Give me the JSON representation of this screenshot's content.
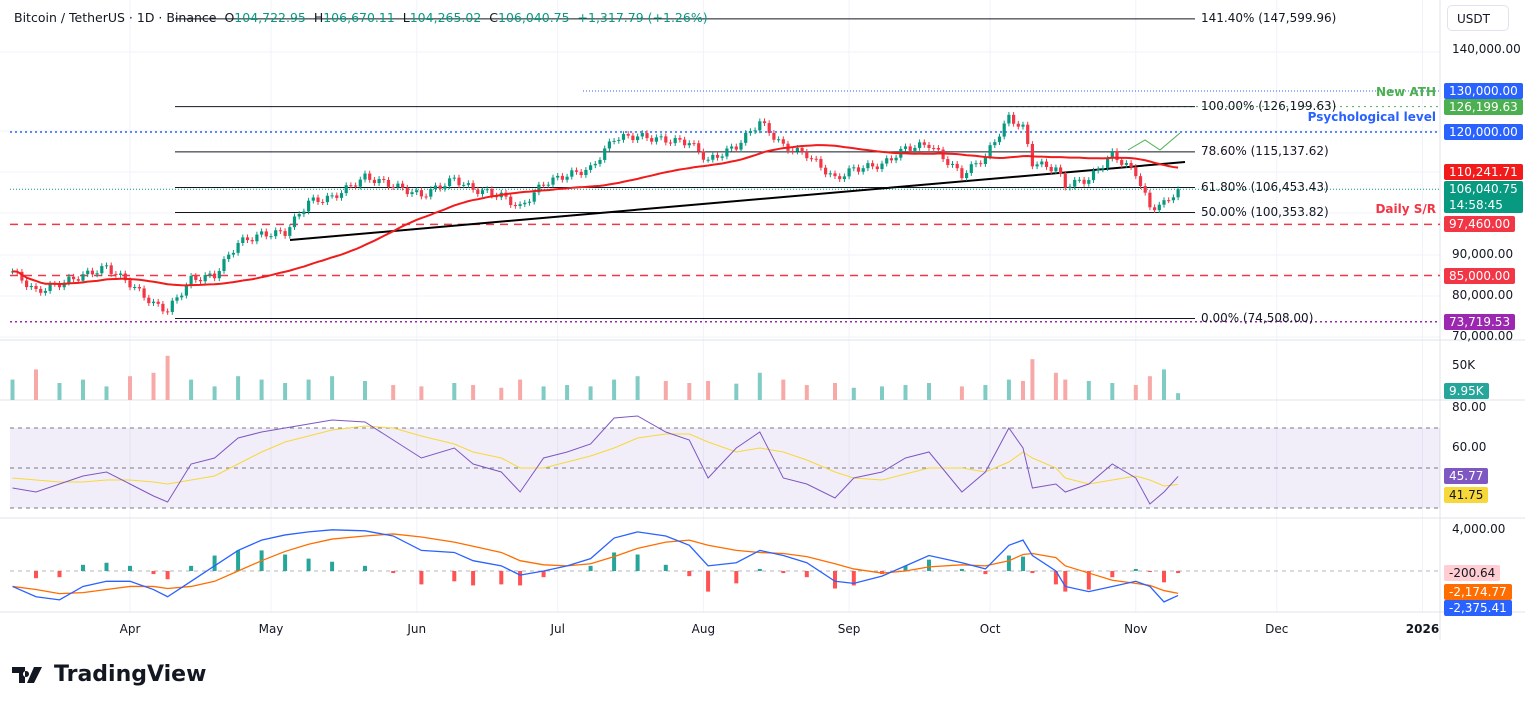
{
  "header": {
    "symbol": "Bitcoin / TetherUS · 1D · Binance",
    "o_label": "O",
    "o": "104,722.95",
    "h_label": "H",
    "h": "106,670.11",
    "l_label": "L",
    "l": "104,265.02",
    "c_label": "C",
    "c": "106,040.75",
    "change": "+1,317.79 (+1.26%)"
  },
  "currency": "USDT",
  "brand": "TradingView",
  "colors": {
    "up": "#089981",
    "down": "#f23645",
    "ma": "#f21b1b",
    "rsi": "#7e57c2",
    "rsi_ma": "#f7d83a",
    "macd": "#2962ff",
    "signal": "#ff6d00"
  },
  "chart_data": [
    {
      "type": "candlestick",
      "pane": "price",
      "x": [
        "2025-03-07",
        "2025-03-12",
        "2025-03-17",
        "2025-03-22",
        "2025-03-27",
        "2025-04-01",
        "2025-04-06",
        "2025-04-09",
        "2025-04-14",
        "2025-04-19",
        "2025-04-24",
        "2025-04-29",
        "2025-05-04",
        "2025-05-09",
        "2025-05-14",
        "2025-05-21",
        "2025-05-27",
        "2025-06-02",
        "2025-06-09",
        "2025-06-13",
        "2025-06-19",
        "2025-06-23",
        "2025-06-28",
        "2025-07-03",
        "2025-07-08",
        "2025-07-13",
        "2025-07-18",
        "2025-07-24",
        "2025-07-29",
        "2025-08-02",
        "2025-08-08",
        "2025-08-13",
        "2025-08-18",
        "2025-08-23",
        "2025-08-29",
        "2025-09-02",
        "2025-09-08",
        "2025-09-13",
        "2025-09-18",
        "2025-09-25",
        "2025-09-30",
        "2025-10-05",
        "2025-10-08",
        "2025-10-10",
        "2025-10-15",
        "2025-10-17",
        "2025-10-22",
        "2025-10-27",
        "2025-11-01",
        "2025-11-04",
        "2025-11-07",
        "2025-11-10"
      ],
      "close": [
        86000,
        81000,
        83000,
        85000,
        87000,
        83000,
        78000,
        76500,
        84000,
        85000,
        93000,
        95000,
        95500,
        103000,
        104000,
        109000,
        107000,
        104500,
        108500,
        106000,
        104500,
        101500,
        107500,
        109500,
        111000,
        118500,
        119000,
        118000,
        117500,
        113000,
        116500,
        122500,
        116500,
        114500,
        108500,
        111000,
        112000,
        116000,
        117000,
        109500,
        114000,
        123500,
        121000,
        112500,
        111000,
        107000,
        108500,
        114500,
        110000,
        101500,
        102500,
        106040.75
      ],
      "ma_label": "110,241.71",
      "ma_last": 110241.71,
      "y_ticks": [
        140000,
        90000,
        80000,
        70000
      ],
      "y_tick_labels": [
        "140,000.00",
        "90,000.00",
        "80,000.00",
        "70,000.00"
      ],
      "x_tick_labels": [
        "Apr",
        "May",
        "Jun",
        "Jul",
        "Aug",
        "Sep",
        "Oct",
        "Nov",
        "Dec",
        "2026"
      ],
      "x_tick_dates": [
        "2025-04-01",
        "2025-05-01",
        "2025-06-01",
        "2025-07-01",
        "2025-08-01",
        "2025-09-01",
        "2025-10-01",
        "2025-11-01",
        "2025-12-01",
        "2026-01-01"
      ],
      "fib_levels": [
        {
          "label": "141.40% (147,599.96)",
          "price": 147599.96
        },
        {
          "label": "100.00% (126,199.63)",
          "price": 126199.63
        },
        {
          "label": "78.60% (115,137.62)",
          "price": 115137.62
        },
        {
          "label": "61.80% (106,453.43)",
          "price": 106453.43
        },
        {
          "label": "50.00% (100,353.82)",
          "price": 100353.82
        },
        {
          "label": "0.00% (74,508.00)",
          "price": 74508
        }
      ],
      "price_tags": [
        {
          "label": "130,000.00",
          "price": 130000,
          "color": "#2962ff"
        },
        {
          "label": "126,199.63",
          "price": 126199.63,
          "color": "#4caf50"
        },
        {
          "label": "120,000.00",
          "price": 120000,
          "color": "#2962ff"
        },
        {
          "label": "110,241.71",
          "price": 110241.71,
          "color": "#f21b1b"
        },
        {
          "label": "97,460.00",
          "price": 97460,
          "color": "#f23645"
        },
        {
          "label": "85,000.00",
          "price": 85000,
          "color": "#f23645"
        },
        {
          "label": "73,719.53",
          "price": 73719.53,
          "color": "#9c27b0"
        }
      ],
      "last_price": {
        "label": "106,040.75",
        "countdown": "14:58:45",
        "color": "#089981"
      },
      "annotations": [
        {
          "text": "New ATH",
          "color": "#4caf50",
          "price": 126199.63
        },
        {
          "text": "Psychological level",
          "color": "#2962ff",
          "price": 120000
        },
        {
          "text": "Daily S/R",
          "color": "#f23645",
          "price": 97460
        }
      ]
    },
    {
      "type": "bar",
      "pane": "volume",
      "values_k": [
        30,
        45,
        25,
        30,
        20,
        35,
        40,
        65,
        30,
        20,
        35,
        30,
        25,
        30,
        35,
        28,
        22,
        20,
        25,
        22,
        18,
        30,
        20,
        22,
        20,
        30,
        35,
        28,
        25,
        28,
        24,
        40,
        30,
        22,
        25,
        18,
        20,
        22,
        25,
        20,
        22,
        30,
        28,
        60,
        40,
        30,
        28,
        25,
        22,
        35,
        45,
        10
      ],
      "tick_label": "50K",
      "last_label": "9.95K"
    },
    {
      "type": "line",
      "pane": "rsi",
      "rsi": [
        40,
        38,
        42,
        46,
        48,
        42,
        36,
        33,
        52,
        55,
        65,
        68,
        70,
        72,
        74,
        73,
        64,
        55,
        60,
        52,
        48,
        38,
        55,
        58,
        62,
        75,
        76,
        68,
        64,
        45,
        60,
        68,
        45,
        42,
        35,
        45,
        48,
        55,
        58,
        38,
        48,
        70,
        60,
        40,
        42,
        38,
        42,
        52,
        45,
        32,
        38,
        45.77
      ],
      "rsi_ma": [
        45,
        44,
        43,
        43,
        44,
        44,
        43,
        42,
        44,
        46,
        52,
        58,
        63,
        66,
        69,
        71,
        70,
        66,
        62,
        58,
        55,
        50,
        50,
        53,
        56,
        60,
        65,
        67,
        67,
        63,
        58,
        60,
        58,
        54,
        48,
        45,
        44,
        47,
        50,
        50,
        48,
        53,
        58,
        55,
        50,
        45,
        42,
        44,
        46,
        44,
        41,
        41.75
      ],
      "bands": [
        70,
        50,
        30
      ],
      "y_tick_labels": [
        "80.00",
        "60.00"
      ],
      "rsi_label": "45.77",
      "rsi_ma_label": "41.75"
    },
    {
      "type": "line",
      "pane": "macd",
      "macd": [
        -1500,
        -2500,
        -2800,
        -1500,
        -1000,
        -1000,
        -1800,
        -2500,
        -1000,
        500,
        2000,
        3000,
        3500,
        3800,
        4000,
        3900,
        3400,
        2000,
        1800,
        1000,
        500,
        -400,
        0,
        500,
        1200,
        3200,
        3800,
        3400,
        2500,
        500,
        800,
        2000,
        1500,
        800,
        -1000,
        -1200,
        -500,
        500,
        1500,
        800,
        200,
        2500,
        3000,
        1500,
        0,
        -1500,
        -2000,
        -1500,
        -1000,
        -1500,
        -3000,
        -2375.41
      ],
      "signal": [
        -1500,
        -1800,
        -2200,
        -2100,
        -1800,
        -1500,
        -1500,
        -1700,
        -1500,
        -1000,
        0,
        1000,
        1900,
        2600,
        3100,
        3400,
        3600,
        3300,
        2800,
        2400,
        1800,
        1000,
        600,
        500,
        700,
        1400,
        2200,
        2800,
        3000,
        2500,
        2000,
        1800,
        1700,
        1400,
        700,
        200,
        -200,
        0,
        400,
        600,
        500,
        1000,
        1600,
        1700,
        1300,
        500,
        -200,
        -900,
        -1200,
        -1400,
        -1900,
        -2174.77
      ],
      "y_tick_label": "4,000.00",
      "hist_label": "-200.64",
      "signal_label": "-2,174.77",
      "macd_label": "-2,375.41"
    }
  ]
}
